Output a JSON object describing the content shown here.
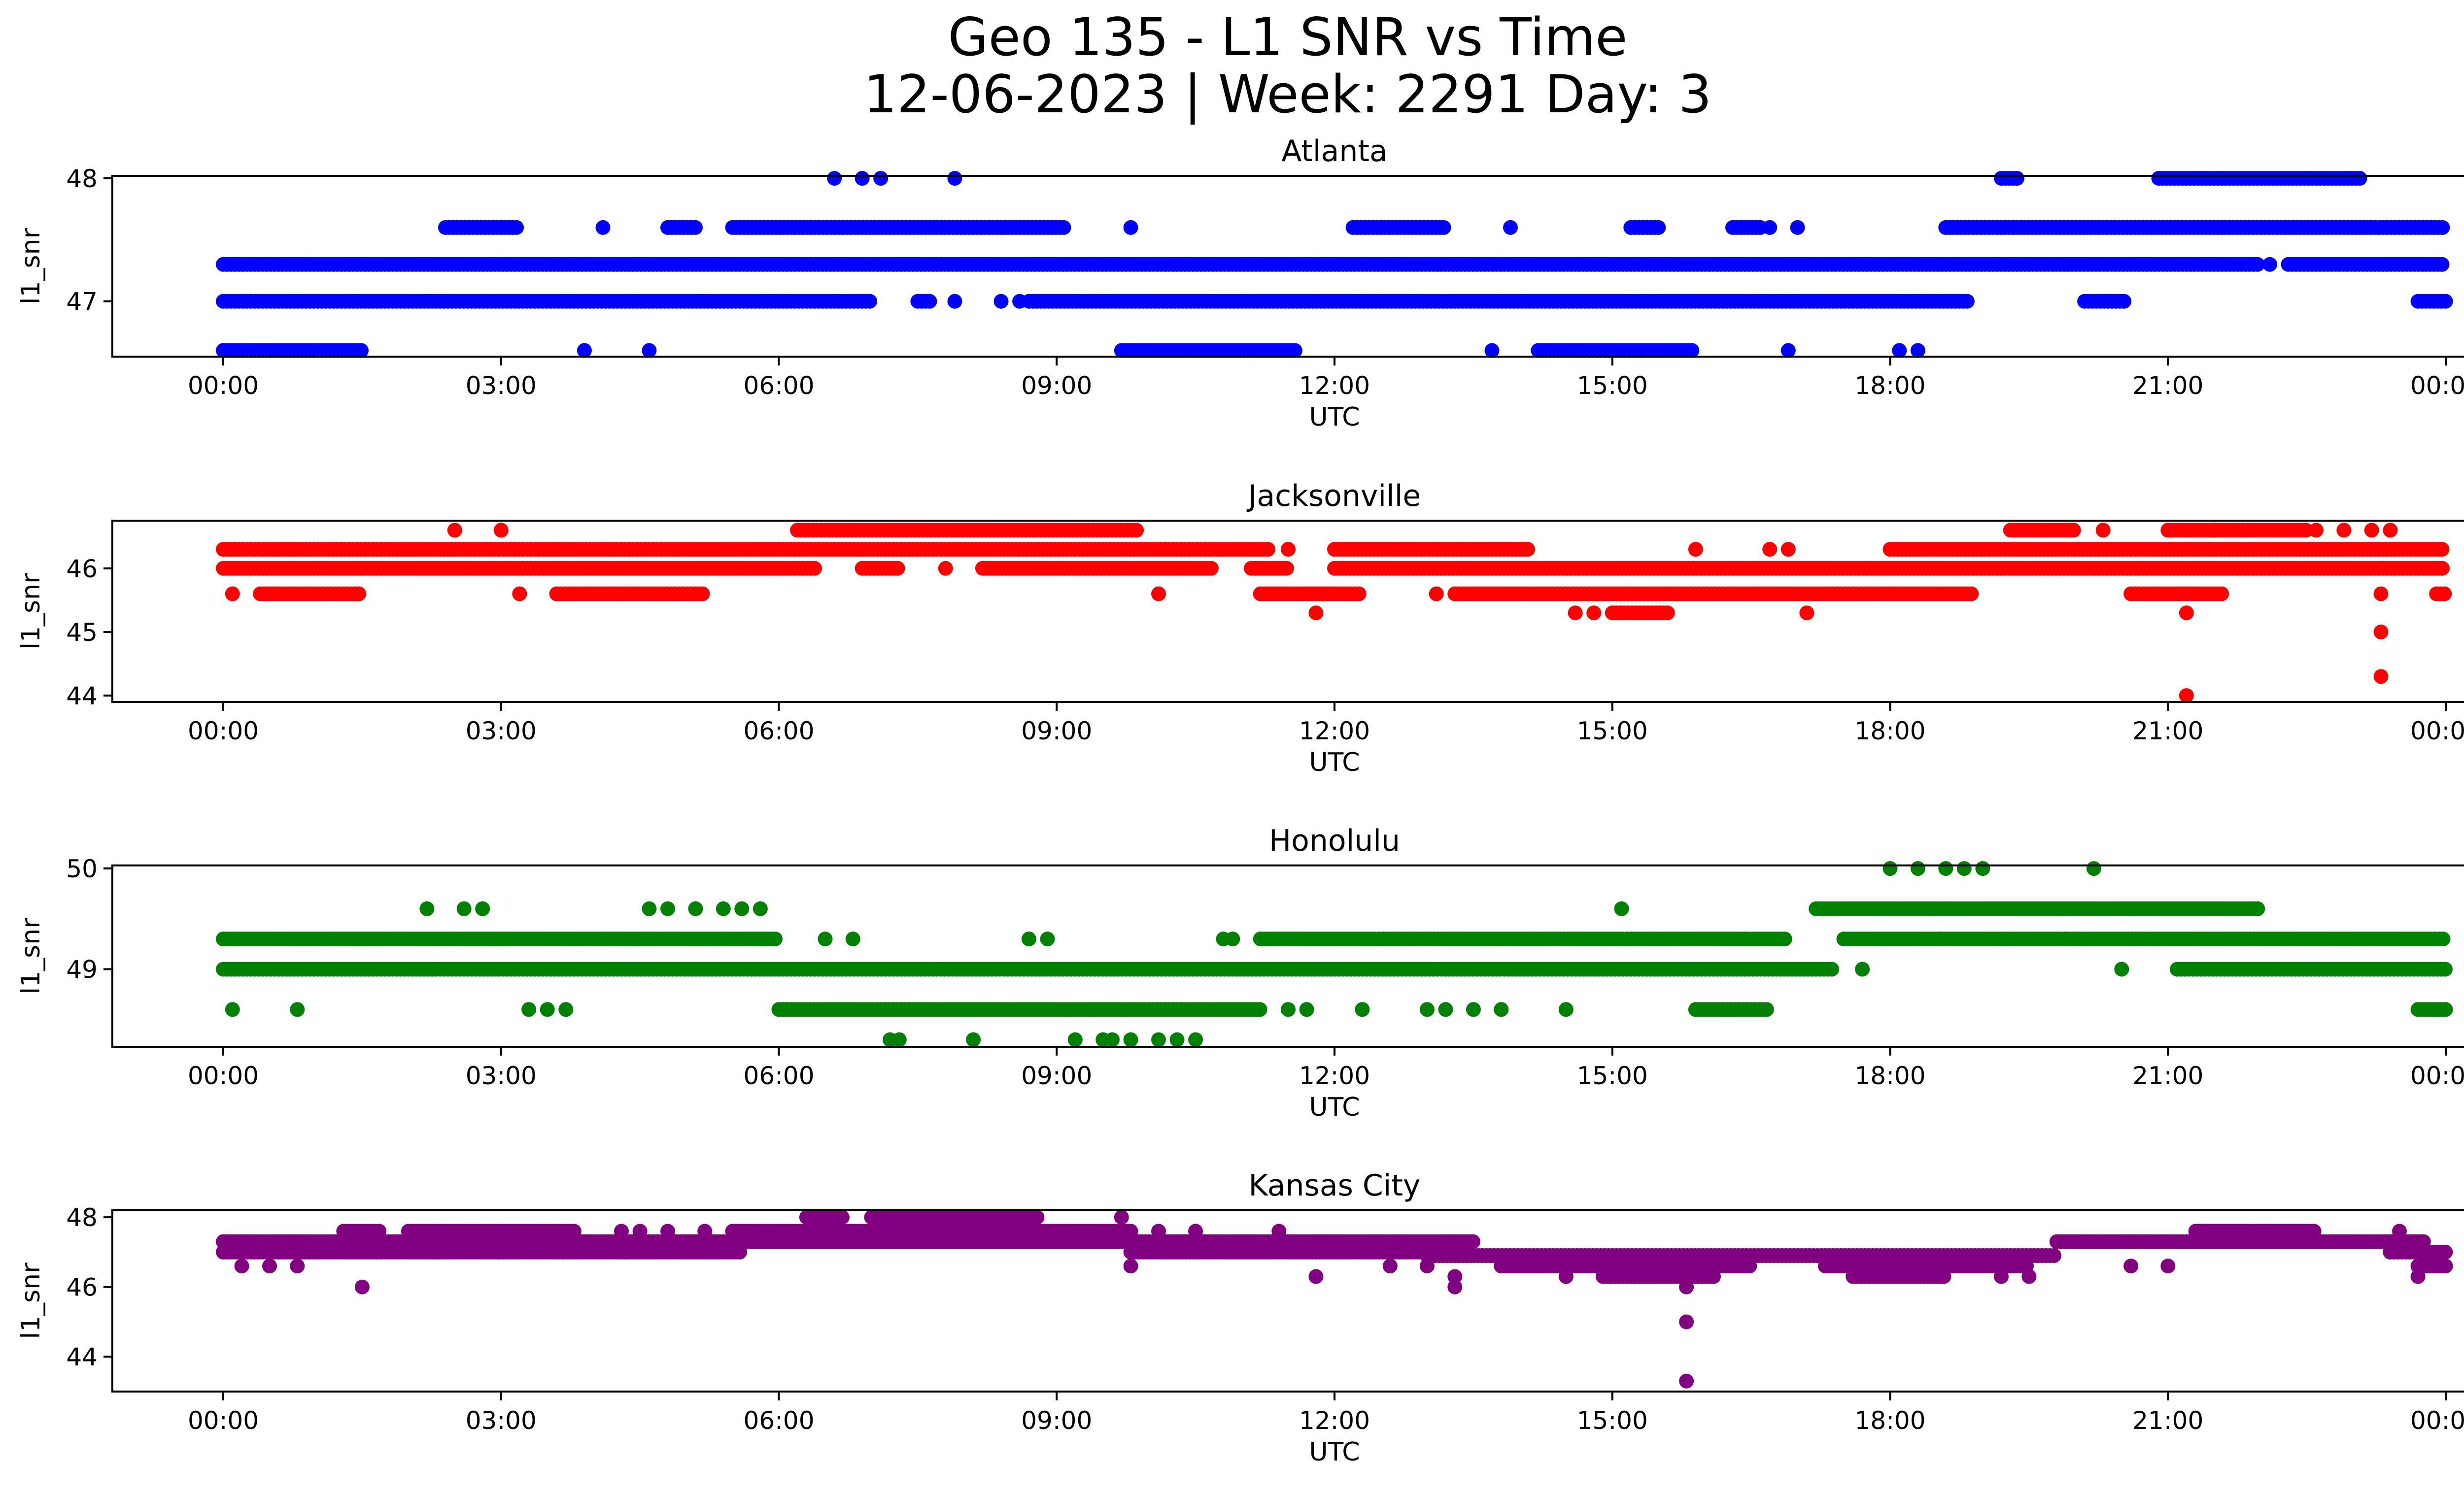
{
  "figure": {
    "title_line1": "Geo 135 - L1 SNR vs Time",
    "title_line2": "12-06-2023 | Week: 2291 Day: 3"
  },
  "chart_data": [
    {
      "type": "scatter",
      "title": "Atlanta",
      "xlabel": "UTC",
      "ylabel": "l1_snr",
      "color": "#0000ff",
      "x_unit": "hours UTC",
      "xlim": [
        0,
        24
      ],
      "ylim": [
        46.55,
        48.02
      ],
      "xticks": [
        "00:00",
        "03:00",
        "06:00",
        "09:00",
        "12:00",
        "15:00",
        "18:00",
        "21:00",
        "00:00"
      ],
      "yticks": [
        47,
        48
      ],
      "grid": false,
      "series": [
        {
          "y": 47.0,
          "segments": [
            [
              0.0,
              7.0
            ],
            [
              7.5,
              7.65
            ],
            [
              8.7,
              18.85
            ],
            [
              20.1,
              20.55
            ],
            [
              23.7,
              24.0
            ]
          ]
        },
        {
          "y": 47.3,
          "segments": [
            [
              0.0,
              22.0
            ],
            [
              22.3,
              24.0
            ]
          ]
        },
        {
          "y": 47.6,
          "segments": [
            [
              2.4,
              3.2
            ],
            [
              4.8,
              5.1
            ],
            [
              5.5,
              9.1
            ],
            [
              12.2,
              13.2
            ],
            [
              15.2,
              15.5
            ],
            [
              16.3,
              16.6
            ],
            [
              18.6,
              24.0
            ]
          ]
        },
        {
          "y": 48.0,
          "segments": [
            [
              19.2,
              19.4
            ],
            [
              20.9,
              23.1
            ]
          ]
        },
        {
          "y": 46.6,
          "segments": [
            [
              0.0,
              1.5
            ],
            [
              9.7,
              11.6
            ],
            [
              14.2,
              15.9
            ]
          ]
        },
        {
          "y": 47.0,
          "points": [
            7.9,
            8.4,
            8.6
          ]
        },
        {
          "y": 47.6,
          "points": [
            4.1,
            9.8,
            13.9,
            16.7,
            17.0
          ]
        },
        {
          "y": 48.0,
          "points": [
            6.6,
            6.9,
            7.1,
            7.9
          ]
        },
        {
          "y": 46.6,
          "points": [
            3.9,
            4.6,
            13.7,
            16.9,
            18.1,
            18.3
          ]
        },
        {
          "y": 47.3,
          "points": [
            22.1
          ]
        }
      ]
    },
    {
      "type": "scatter",
      "title": "Jacksonville",
      "xlabel": "UTC",
      "ylabel": "l1_snr",
      "color": "#ff0000",
      "x_unit": "hours UTC",
      "xlim": [
        0,
        24
      ],
      "ylim": [
        43.9,
        46.75
      ],
      "xticks": [
        "00:00",
        "03:00",
        "06:00",
        "09:00",
        "12:00",
        "15:00",
        "18:00",
        "21:00",
        "00:00"
      ],
      "yticks": [
        44,
        45,
        46
      ],
      "grid": false,
      "series": [
        {
          "y": 46.0,
          "segments": [
            [
              0.0,
              6.4
            ],
            [
              6.9,
              7.3
            ],
            [
              8.2,
              10.7
            ],
            [
              11.1,
              11.5
            ],
            [
              12.0,
              24.0
            ]
          ]
        },
        {
          "y": 46.3,
          "segments": [
            [
              0.0,
              11.3
            ],
            [
              12.0,
              14.1
            ],
            [
              18.0,
              24.0
            ]
          ]
        },
        {
          "y": 46.6,
          "segments": [
            [
              6.2,
              9.9
            ],
            [
              19.3,
              20.0
            ],
            [
              21.0,
              22.5
            ]
          ]
        },
        {
          "y": 45.6,
          "segments": [
            [
              0.4,
              1.5
            ],
            [
              3.6,
              5.2
            ],
            [
              11.2,
              12.3
            ],
            [
              13.3,
              18.9
            ],
            [
              20.6,
              21.6
            ],
            [
              23.9,
              24.0
            ]
          ]
        },
        {
          "y": 45.3,
          "segments": [
            [
              15.0,
              15.6
            ]
          ]
        },
        {
          "y": 45.6,
          "points": [
            0.1,
            3.2,
            10.1,
            13.1,
            23.3
          ]
        },
        {
          "y": 46.6,
          "points": [
            2.5,
            3.0,
            20.3,
            21.5,
            22.6,
            22.9,
            23.2,
            23.4
          ]
        },
        {
          "y": 46.3,
          "points": [
            11.5,
            15.9,
            16.7,
            16.9
          ]
        },
        {
          "y": 46.0,
          "points": [
            7.8
          ]
        },
        {
          "y": 45.3,
          "points": [
            11.8,
            14.6,
            14.8,
            17.1,
            21.2
          ]
        },
        {
          "y": 45.0,
          "points": [
            23.3
          ]
        },
        {
          "y": 44.3,
          "points": [
            23.3
          ]
        },
        {
          "y": 44.0,
          "points": [
            21.2
          ]
        }
      ]
    },
    {
      "type": "scatter",
      "title": "Honolulu",
      "xlabel": "UTC",
      "ylabel": "l1_snr",
      "color": "#008000",
      "x_unit": "hours UTC",
      "xlim": [
        0,
        24
      ],
      "ylim": [
        48.23,
        50.03
      ],
      "xticks": [
        "00:00",
        "03:00",
        "06:00",
        "09:00",
        "12:00",
        "15:00",
        "18:00",
        "21:00",
        "00:00"
      ],
      "yticks": [
        49,
        50
      ],
      "grid": false,
      "series": [
        {
          "y": 49.3,
          "segments": [
            [
              0.0,
              6.0
            ],
            [
              11.2,
              16.9
            ],
            [
              17.5,
              24.0
            ]
          ]
        },
        {
          "y": 49.0,
          "segments": [
            [
              0.0,
              17.4
            ],
            [
              21.1,
              24.0
            ]
          ]
        },
        {
          "y": 49.6,
          "segments": [
            [
              17.2,
              22.0
            ]
          ]
        },
        {
          "y": 48.6,
          "segments": [
            [
              6.0,
              11.2
            ],
            [
              15.9,
              16.7
            ],
            [
              23.7,
              24.0
            ]
          ]
        },
        {
          "y": 50.0,
          "points": [
            18.0,
            18.3,
            18.6,
            18.8,
            19.0,
            20.2
          ]
        },
        {
          "y": 49.6,
          "points": [
            2.2,
            2.6,
            2.8,
            4.6,
            4.8,
            5.1,
            5.4,
            5.6,
            5.8,
            15.1
          ]
        },
        {
          "y": 49.3,
          "points": [
            6.5,
            6.8,
            8.7,
            8.9,
            10.8,
            10.9
          ]
        },
        {
          "y": 49.0,
          "points": [
            17.7,
            20.5
          ]
        },
        {
          "y": 48.6,
          "points": [
            0.1,
            0.8,
            3.3,
            3.5,
            3.7,
            11.5,
            11.7,
            12.3,
            13.0,
            13.2,
            13.5,
            13.8,
            14.5
          ]
        },
        {
          "y": 48.3,
          "points": [
            7.2,
            7.3,
            8.1,
            9.2,
            9.5,
            9.6,
            9.8,
            10.1,
            10.3,
            10.5
          ]
        }
      ]
    },
    {
      "type": "scatter",
      "title": "Kansas City",
      "xlabel": "UTC",
      "ylabel": "l1_snr",
      "color": "#800080",
      "x_unit": "hours UTC",
      "xlim": [
        0,
        24
      ],
      "ylim": [
        43.0,
        48.2
      ],
      "xticks": [
        "00:00",
        "03:00",
        "06:00",
        "09:00",
        "12:00",
        "15:00",
        "18:00",
        "21:00",
        "00:00"
      ],
      "yticks": [
        44,
        46,
        48
      ],
      "grid": false,
      "series": [
        {
          "y": 47.0,
          "segments": [
            [
              0.0,
              5.6
            ],
            [
              9.8,
              13.3
            ],
            [
              23.4,
              24.0
            ]
          ]
        },
        {
          "y": 47.3,
          "segments": [
            [
              0.0,
              13.5
            ],
            [
              19.8,
              23.8
            ]
          ]
        },
        {
          "y": 47.6,
          "segments": [
            [
              1.3,
              1.7
            ],
            [
              2.0,
              3.8
            ],
            [
              5.5,
              9.8
            ],
            [
              21.3,
              22.6
            ]
          ]
        },
        {
          "y": 48.0,
          "segments": [
            [
              6.3,
              6.7
            ],
            [
              7.0,
              8.8
            ]
          ]
        },
        {
          "y": 46.9,
          "segments": [
            [
              13.0,
              19.8
            ]
          ]
        },
        {
          "y": 46.6,
          "segments": [
            [
              13.8,
              16.5
            ],
            [
              17.3,
              19.5
            ],
            [
              23.7,
              24.0
            ]
          ]
        },
        {
          "y": 46.3,
          "segments": [
            [
              14.9,
              16.1
            ],
            [
              17.6,
              18.6
            ]
          ]
        },
        {
          "y": 47.6,
          "points": [
            4.3,
            4.5,
            4.8,
            5.2,
            10.1,
            10.5,
            11.4,
            23.5
          ]
        },
        {
          "y": 46.6,
          "points": [
            0.2,
            0.5,
            0.8,
            9.8,
            12.6,
            13.0,
            20.6,
            21.0,
            23.8
          ]
        },
        {
          "y": 46.3,
          "points": [
            11.8,
            13.3,
            14.5,
            19.2,
            19.5,
            23.7
          ]
        },
        {
          "y": 46.0,
          "points": [
            1.5,
            13.3,
            15.8
          ]
        },
        {
          "y": 45.0,
          "points": [
            15.8
          ]
        },
        {
          "y": 43.3,
          "points": [
            15.8
          ]
        },
        {
          "y": 48.0,
          "points": [
            9.7
          ]
        }
      ]
    }
  ]
}
